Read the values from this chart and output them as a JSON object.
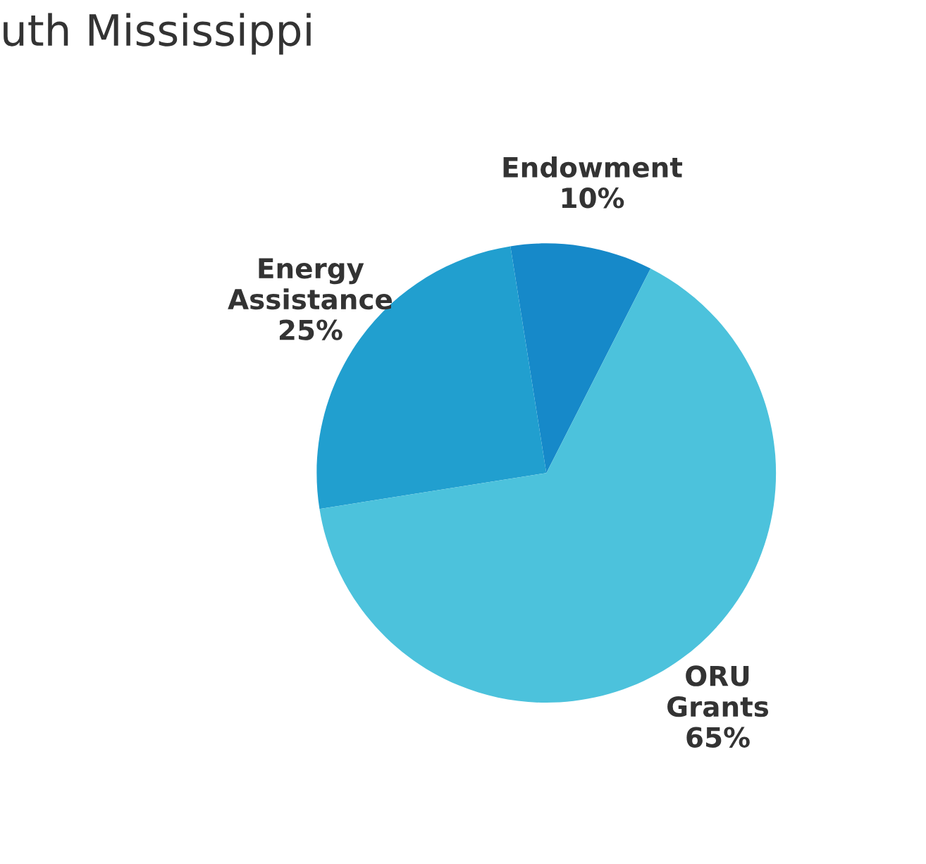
{
  "chart_data": {
    "type": "pie",
    "title": "uth Mississippi",
    "categories": [
      "Endowment",
      "Energy\nAssistance",
      "ORU\nGrants"
    ],
    "values": [
      10,
      25,
      65
    ],
    "colors": [
      "#1689c9",
      "#219fcf",
      "#4cc2dc"
    ],
    "value_labels": [
      "10%",
      "25%",
      "65%"
    ]
  }
}
